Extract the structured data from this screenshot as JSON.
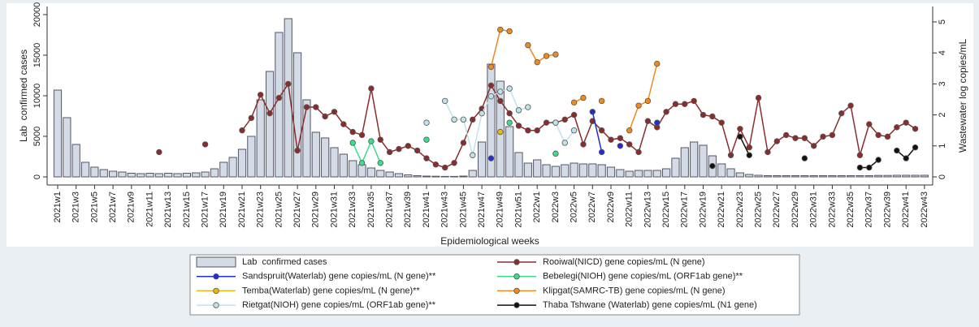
{
  "chart_data": {
    "type": "bar",
    "xlabel": "Epidemiological weeks",
    "ylabel": "Lab  confirmed cases",
    "y2label": "Wastewater log copies/mL",
    "ylim": [
      0,
      20000
    ],
    "yticks": [
      0,
      5000,
      10000,
      15000,
      20000
    ],
    "y2lim": [
      0,
      5
    ],
    "y2ticks": [
      0,
      1,
      2,
      3,
      4,
      5
    ],
    "legend": "bottom",
    "categories": [
      "2021w1",
      null,
      "2021w3",
      null,
      "2021w5",
      null,
      "2021w7",
      null,
      "2021w9",
      null,
      "2021w11",
      null,
      "2021w13",
      null,
      "2021w15",
      null,
      "2021w17",
      null,
      "2021w19",
      null,
      "2021w21",
      null,
      "2021w23",
      null,
      "2021w25",
      null,
      "2021w27",
      null,
      "2021w29",
      null,
      "2021w31",
      null,
      "2021w33",
      null,
      "2021w35",
      null,
      "2021w37",
      null,
      "2021w39",
      null,
      "2021w41",
      null,
      "2021w43",
      null,
      "2021w45",
      null,
      "2021w47",
      null,
      "2021w49",
      null,
      "2021w51",
      null,
      "2022w1",
      null,
      "2022w3",
      null,
      "2022w5",
      null,
      "2022w7",
      null,
      "2022w9",
      null,
      "2022w11",
      null,
      "2022w13",
      null,
      "2022w15",
      null,
      "2022w17",
      null,
      "2022w19",
      null,
      "2022w21",
      null,
      "2022w23",
      null,
      "2022w25",
      null,
      "2022w27",
      null,
      "2022w29",
      null,
      "2022w31",
      null,
      "2022w33",
      null,
      "2022w35",
      null,
      "2022w37",
      null,
      "2022w39",
      null,
      "2022w41",
      null,
      "2022w43"
    ],
    "series": [
      {
        "name": "Lab  confirmed cases",
        "type": "bar",
        "color": "#d3dbe6",
        "values": [
          10700,
          7300,
          4000,
          1800,
          1200,
          900,
          700,
          600,
          450,
          400,
          450,
          400,
          450,
          400,
          450,
          500,
          600,
          1000,
          1800,
          2400,
          3400,
          5000,
          9500,
          13000,
          17800,
          19500,
          15300,
          9500,
          5500,
          4800,
          3600,
          2800,
          2000,
          1500,
          1100,
          800,
          600,
          400,
          250,
          150,
          100,
          80,
          60,
          60,
          100,
          800,
          4300,
          13900,
          11800,
          6200,
          3000,
          1700,
          2100,
          1500,
          1300,
          1500,
          1700,
          1600,
          1600,
          1500,
          1200,
          900,
          700,
          800,
          800,
          800,
          1000,
          2300,
          3600,
          4300,
          3900,
          2600,
          1600,
          1000,
          500,
          300,
          200,
          150,
          150,
          150,
          150,
          150,
          150,
          150,
          150,
          150,
          150,
          150,
          150,
          180,
          180,
          200,
          200,
          200,
          200
        ]
      },
      {
        "name": "Rooiwal(NICD) gene copies/mL (N gene)",
        "type": "line",
        "axis": "y2",
        "color": "#8b2c2c",
        "values": [
          null,
          null,
          null,
          null,
          null,
          null,
          null,
          null,
          null,
          null,
          null,
          0.8,
          null,
          null,
          null,
          null,
          1.05,
          null,
          null,
          null,
          1.5,
          1.9,
          2.65,
          2.05,
          2.55,
          3.0,
          0.85,
          2.25,
          2.25,
          1.95,
          2.1,
          1.7,
          1.45,
          1.35,
          2.85,
          1.2,
          0.8,
          0.9,
          1.0,
          0.85,
          0.6,
          0.4,
          0.3,
          0.45,
          1.1,
          1.85,
          2.2,
          2.95,
          2.45,
          2.05,
          1.65,
          1.5,
          1.5,
          1.75,
          1.75,
          1.85,
          2.0,
          1.05,
          1.8,
          1.5,
          1.2,
          1.25,
          1.05,
          0.8,
          1.8,
          1.6,
          2.1,
          2.35,
          2.35,
          2.45,
          2.0,
          1.95,
          1.75,
          0.7,
          1.55,
          0.95,
          2.55,
          0.8,
          1.15,
          1.35,
          1.25,
          1.25,
          1.0,
          1.3,
          1.35,
          2.05,
          2.3,
          0.7,
          1.7,
          1.35,
          1.3,
          1.6,
          1.75,
          1.55,
          null
        ]
      },
      {
        "name": "Sandspruit(Waterlab) gene copies/mL (N gene)**",
        "type": "line",
        "axis": "y2",
        "color": "#1f2fd0",
        "values": [
          null,
          null,
          null,
          null,
          null,
          null,
          null,
          null,
          null,
          null,
          null,
          null,
          null,
          null,
          null,
          null,
          null,
          null,
          null,
          null,
          null,
          null,
          null,
          null,
          null,
          null,
          null,
          null,
          null,
          null,
          null,
          null,
          null,
          null,
          null,
          null,
          null,
          null,
          null,
          null,
          null,
          null,
          null,
          null,
          null,
          null,
          null,
          0.6,
          null,
          null,
          null,
          null,
          null,
          null,
          null,
          null,
          null,
          null,
          2.1,
          0.8,
          null,
          1.0,
          null,
          null,
          null,
          1.75,
          null,
          null,
          null,
          null,
          null,
          null,
          null,
          null,
          null,
          null,
          null,
          null,
          null,
          null,
          null,
          null,
          null,
          null,
          null,
          null,
          null,
          null,
          null,
          null,
          null,
          null,
          null,
          null,
          null
        ]
      },
      {
        "name": "Bebelegi(NIOH) gene copies/mL (ORF1ab gene)**",
        "type": "line",
        "axis": "y2",
        "color": "#3bdc8a",
        "values": [
          null,
          null,
          null,
          null,
          null,
          null,
          null,
          null,
          null,
          null,
          null,
          null,
          null,
          null,
          null,
          null,
          null,
          null,
          null,
          null,
          null,
          null,
          null,
          null,
          null,
          null,
          null,
          null,
          null,
          null,
          null,
          null,
          1.1,
          0.45,
          1.15,
          0.45,
          null,
          null,
          null,
          null,
          1.2,
          null,
          null,
          null,
          null,
          null,
          null,
          null,
          null,
          1.75,
          null,
          null,
          null,
          null,
          0.75,
          null,
          null,
          null,
          null,
          null,
          null,
          null,
          null,
          null,
          null,
          null,
          null,
          null,
          null,
          null,
          null,
          null,
          null,
          null,
          null,
          null,
          null,
          null,
          null,
          null,
          null,
          null,
          null,
          null,
          null,
          null,
          null,
          null,
          null,
          null,
          null,
          null,
          null,
          null,
          null
        ]
      },
      {
        "name": "Temba(Waterlab) gene copies/mL (N gene)**",
        "type": "line",
        "axis": "y2",
        "color": "#e8b90f",
        "values": [
          null,
          null,
          null,
          null,
          null,
          null,
          null,
          null,
          null,
          null,
          null,
          null,
          null,
          null,
          null,
          null,
          null,
          null,
          null,
          null,
          null,
          null,
          null,
          null,
          null,
          null,
          null,
          null,
          null,
          null,
          null,
          null,
          null,
          null,
          null,
          null,
          null,
          null,
          null,
          null,
          null,
          null,
          null,
          null,
          null,
          null,
          null,
          null,
          1.45,
          null,
          null,
          null,
          null,
          null,
          null,
          null,
          null,
          null,
          null,
          null,
          null,
          null,
          null,
          null,
          null,
          null,
          null,
          null,
          null,
          null,
          null,
          null,
          null,
          null,
          null,
          null,
          null,
          null,
          null,
          null,
          null,
          null,
          null,
          null,
          null,
          null,
          null,
          null,
          null,
          null,
          null,
          null,
          null,
          null,
          null
        ]
      },
      {
        "name": "Klipgat(SAMRC-TB) gene copies/mL (N gene)",
        "type": "line",
        "axis": "y2",
        "color": "#ee8a1e",
        "values": [
          null,
          null,
          null,
          null,
          null,
          null,
          null,
          null,
          null,
          null,
          null,
          null,
          null,
          null,
          null,
          null,
          null,
          null,
          null,
          null,
          null,
          null,
          null,
          null,
          null,
          null,
          null,
          null,
          null,
          null,
          null,
          null,
          null,
          null,
          null,
          null,
          null,
          null,
          null,
          null,
          null,
          null,
          null,
          null,
          null,
          null,
          null,
          3.55,
          4.75,
          4.7,
          null,
          4.25,
          3.7,
          3.9,
          3.95,
          null,
          2.4,
          2.55,
          null,
          2.45,
          null,
          null,
          1.5,
          2.3,
          2.45,
          3.65,
          null,
          null,
          null,
          null,
          null,
          null,
          null,
          null,
          null,
          null,
          null,
          null,
          null,
          null,
          null,
          null,
          null,
          null,
          null,
          null,
          null,
          null,
          null,
          null,
          null,
          null,
          null,
          null,
          null
        ]
      },
      {
        "name": "Rietgat(NIOH) gene copies/mL (ORF1ab gene)**",
        "type": "line",
        "axis": "y2",
        "color": "#bfe3ea",
        "values": [
          null,
          null,
          null,
          null,
          null,
          null,
          null,
          null,
          null,
          null,
          null,
          null,
          null,
          null,
          null,
          null,
          null,
          null,
          null,
          null,
          null,
          null,
          null,
          null,
          null,
          null,
          null,
          null,
          null,
          null,
          null,
          null,
          null,
          null,
          null,
          null,
          null,
          null,
          null,
          null,
          1.75,
          null,
          2.45,
          1.85,
          1.85,
          0.7,
          2.05,
          2.6,
          2.75,
          2.85,
          2.15,
          2.25,
          null,
          null,
          1.75,
          1.1,
          1.5,
          null,
          null,
          null,
          null,
          null,
          null,
          null,
          null,
          null,
          null,
          null,
          null,
          null,
          null,
          null,
          null,
          null,
          null,
          null,
          null,
          null,
          null,
          null,
          null,
          null,
          null,
          null,
          null,
          null,
          null,
          null,
          null,
          null,
          null,
          null,
          null,
          null,
          null
        ]
      },
      {
        "name": "Thaba Tshwane (Waterlab) gene copies/mL (N1 gene)",
        "type": "line",
        "axis": "y2",
        "color": "#111111",
        "values": [
          null,
          null,
          null,
          null,
          null,
          null,
          null,
          null,
          null,
          null,
          null,
          null,
          null,
          null,
          null,
          null,
          null,
          null,
          null,
          null,
          null,
          null,
          null,
          null,
          null,
          null,
          null,
          null,
          null,
          null,
          null,
          null,
          null,
          null,
          null,
          null,
          null,
          null,
          null,
          null,
          null,
          null,
          null,
          null,
          null,
          null,
          null,
          null,
          null,
          null,
          null,
          null,
          null,
          null,
          null,
          null,
          null,
          null,
          null,
          null,
          null,
          null,
          null,
          null,
          null,
          null,
          null,
          null,
          null,
          null,
          null,
          0.35,
          null,
          null,
          1.3,
          0.7,
          null,
          null,
          null,
          null,
          null,
          0.6,
          null,
          null,
          null,
          null,
          null,
          0.3,
          0.3,
          0.55,
          null,
          0.85,
          0.6,
          0.95,
          null
        ]
      }
    ]
  }
}
